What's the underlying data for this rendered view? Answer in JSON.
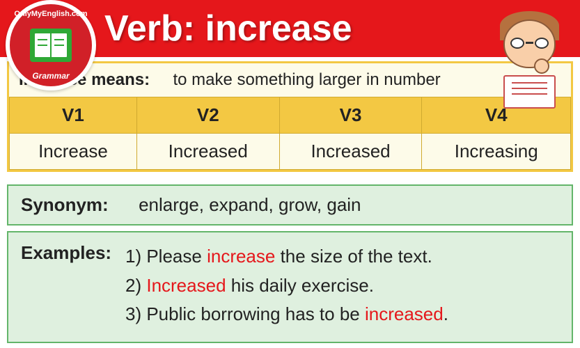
{
  "logo": {
    "top_text": "OnlyMyEnglish.com",
    "bottom_text": "Grammar"
  },
  "header": {
    "title": "Verb: increase"
  },
  "definition": {
    "label": "Increase means:",
    "text": "to make something larger in number"
  },
  "verb_forms": {
    "headers": [
      "V1",
      "V2",
      "V3",
      "V4"
    ],
    "values": [
      "Increase",
      "Increased",
      "Increased",
      "Increasing"
    ],
    "header_bg": "#f3c843",
    "cell_bg": "#fdfbe9",
    "border_color": "#d0aa30"
  },
  "synonym": {
    "label": "Synonym:",
    "text": "enlarge, expand, grow, gain"
  },
  "examples": {
    "label": "Examples:",
    "items": [
      {
        "pre": "1) Please ",
        "hl": "increase",
        "post": " the size of the text."
      },
      {
        "pre": "2) ",
        "hl": "Increased",
        "post": " his daily exercise."
      },
      {
        "pre": "3) Public borrowing has to be ",
        "hl": "increased",
        "post": "."
      }
    ]
  },
  "colors": {
    "header_bg": "#e5171b",
    "box_green_bg": "#dff0df",
    "box_green_border": "#63b56a",
    "highlight": "#e5171b"
  }
}
